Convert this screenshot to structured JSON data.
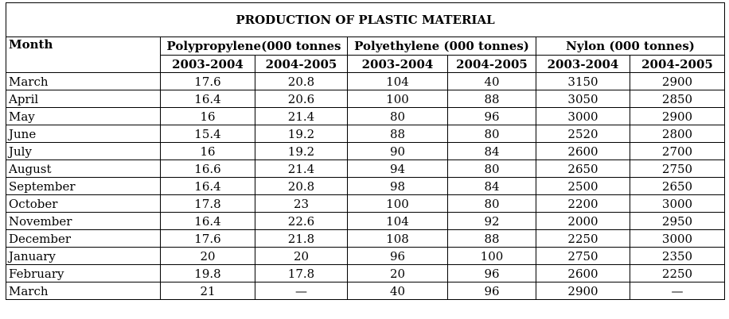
{
  "chart_data": {
    "type": "table",
    "title": "PRODUCTION OF PLASTIC MATERIAL",
    "month_header": "Month",
    "groups": [
      {
        "name": "Polypropylene(000 tonnes",
        "years": [
          "2003-2004",
          "2004-2005"
        ]
      },
      {
        "name": "Polyethylene (000 tonnes)",
        "years": [
          "2003-2004",
          "2004-2005"
        ]
      },
      {
        "name": "Nylon (000 tonnes)",
        "years": [
          "2003-2004",
          "2004-2005"
        ]
      }
    ],
    "rows": [
      {
        "month": "March",
        "values": [
          "17.6",
          "20.8",
          "104",
          "40",
          "3150",
          "2900"
        ]
      },
      {
        "month": "April",
        "values": [
          "16.4",
          "20.6",
          "100",
          "88",
          "3050",
          "2850"
        ]
      },
      {
        "month": "May",
        "values": [
          "16",
          "21.4",
          "80",
          "96",
          "3000",
          "2900"
        ]
      },
      {
        "month": "June",
        "values": [
          "15.4",
          "19.2",
          "88",
          "80",
          "2520",
          "2800"
        ]
      },
      {
        "month": "July",
        "values": [
          "16",
          "19.2",
          "90",
          "84",
          "2600",
          "2700"
        ]
      },
      {
        "month": "August",
        "values": [
          "16.6",
          "21.4",
          "94",
          "80",
          "2650",
          "2750"
        ]
      },
      {
        "month": "September",
        "values": [
          "16.4",
          "20.8",
          "98",
          "84",
          "2500",
          "2650"
        ]
      },
      {
        "month": "October",
        "values": [
          "17.8",
          "23",
          "100",
          "80",
          "2200",
          "3000"
        ]
      },
      {
        "month": "November",
        "values": [
          "16.4",
          "22.6",
          "104",
          "92",
          "2000",
          "2950"
        ]
      },
      {
        "month": "December",
        "values": [
          "17.6",
          "21.8",
          "108",
          "88",
          "2250",
          "3000"
        ]
      },
      {
        "month": "January",
        "values": [
          "20",
          "20",
          "96",
          "100",
          "2750",
          "2350"
        ]
      },
      {
        "month": "February",
        "values": [
          "19.8",
          "17.8",
          "20",
          "96",
          "2600",
          "2250"
        ]
      },
      {
        "month": "March",
        "values": [
          "21",
          "—",
          "40",
          "96",
          "2900",
          "—"
        ]
      }
    ]
  }
}
